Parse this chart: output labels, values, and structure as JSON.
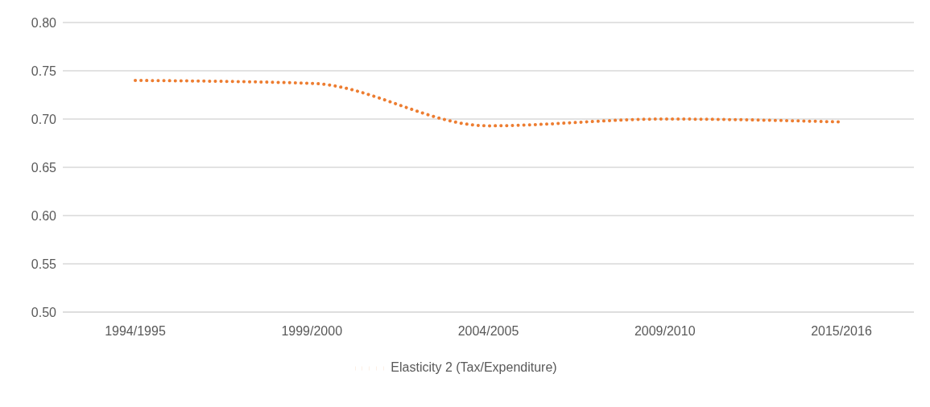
{
  "chart_data": {
    "type": "line",
    "categories": [
      "1994/1995",
      "1999/2000",
      "2004/2005",
      "2009/2010",
      "2015/2016"
    ],
    "series": [
      {
        "name": "Elasticity 2 (Tax/Expenditure)",
        "color": "#ed7d31",
        "values": [
          0.74,
          0.737,
          0.693,
          0.7,
          0.697
        ]
      }
    ],
    "ylim": [
      0.5,
      0.8
    ],
    "yticks": [
      {
        "value": 0.5,
        "label": "0.50"
      },
      {
        "value": 0.55,
        "label": "0.55"
      },
      {
        "value": 0.6,
        "label": "0.60"
      },
      {
        "value": 0.65,
        "label": "0.65"
      },
      {
        "value": 0.7,
        "label": "0.70"
      },
      {
        "value": 0.75,
        "label": "0.75"
      },
      {
        "value": 0.8,
        "label": "0.80"
      }
    ],
    "grid": "y",
    "legend": "bottom",
    "line_style": "dotted",
    "marker": "none"
  }
}
